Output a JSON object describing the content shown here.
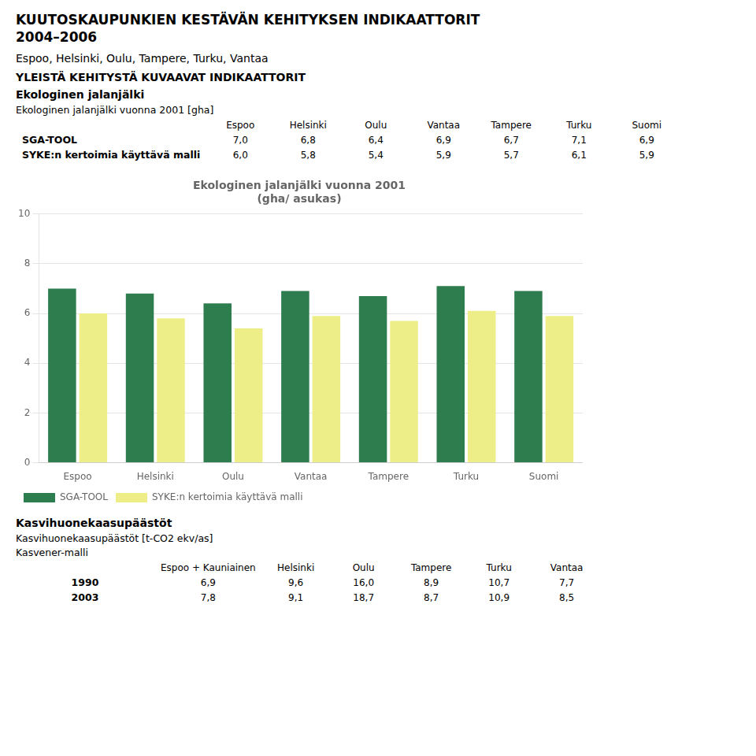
{
  "title": [
    "KUUTOSKAUPUNKIEN KESTÄVÄN KEHITYKSEN INDIKAATTORIT",
    "2004–2006"
  ],
  "subtitle": "Espoo, Helsinki, Oulu, Tampere, Turku, Vantaa",
  "sections_before_chart": [
    {
      "title": "YLEISTÄ KEHITYSTÄ KUVAAVAT INDIKAATTORIT"
    },
    {
      "title": "Ekologinen jalanjälki",
      "labels": [
        "Ekologinen jalanjälki vuonna 2001 [gha]"
      ],
      "table": {
        "columns": [
          "Espoo",
          "Helsinki",
          "Oulu",
          "Vantaa",
          "Tampere",
          "Turku",
          "Suomi"
        ],
        "rows": [
          {
            "label": "SGA-TOOL",
            "cells": [
              "7,0",
              "6,8",
              "6,4",
              "6,9",
              "6,7",
              "7,1",
              "6,9"
            ]
          },
          {
            "label": "SYKE:n kertoimia käyttävä malli",
            "cells": [
              "6,0",
              "5,8",
              "5,4",
              "5,9",
              "5,7",
              "6,1",
              "5,9"
            ]
          }
        ]
      }
    }
  ],
  "chart_data": {
    "type": "bar",
    "title": [
      "Ekologinen jalanjälki vuonna 2001",
      "(gha/ asukas)"
    ],
    "categories": [
      "Espoo",
      "Helsinki",
      "Oulu",
      "Vantaa",
      "Tampere",
      "Turku",
      "Suomi"
    ],
    "series": [
      {
        "name": "SGA-TOOL",
        "color": "#2E7D4F",
        "values": [
          7.0,
          6.8,
          6.4,
          6.9,
          6.7,
          7.1,
          6.9
        ]
      },
      {
        "name": "SYKE:n kertoimia käyttävä malli",
        "color": "#EEEE88",
        "values": [
          6.0,
          5.8,
          5.4,
          5.9,
          5.7,
          6.1,
          5.9
        ]
      }
    ],
    "ylim": [
      0,
      10
    ],
    "yticks": [
      0,
      2,
      4,
      6,
      8,
      10
    ],
    "grid": true,
    "legend": "lower left"
  },
  "sections_after_chart": [
    {
      "title": "Kasvihuonekaasupäästöt",
      "labels": [
        "Kasvihuonekaasupäästöt  [t-CO2 ekv/as]",
        "Kasvener-malli"
      ],
      "table": {
        "columns": [
          "Espoo + Kauniainen",
          "Helsinki",
          "Oulu",
          "Tampere",
          "Turku",
          "Vantaa"
        ],
        "rows": [
          {
            "label": "1990",
            "cells": [
              "6,9",
              "9,6",
              "16,0",
              "8,9",
              "10,7",
              "7,7"
            ]
          },
          {
            "label": "2003",
            "cells": [
              "7,8",
              "9,1",
              "18,7",
              "8,7",
              "10,9",
              "8,5"
            ]
          }
        ]
      }
    }
  ]
}
